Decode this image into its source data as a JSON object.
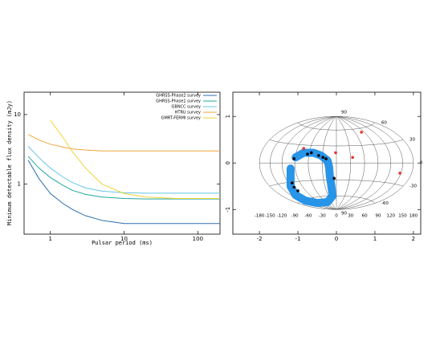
{
  "chart_data": [
    {
      "type": "line",
      "xlabel": "Pulsar period (ms)",
      "ylabel": "Minimum detectable flux density (mJy)",
      "xscale": "log",
      "yscale": "log",
      "xlim": [
        0.44,
        200
      ],
      "ylim": [
        0.19,
        21
      ],
      "xticks": [
        1,
        10,
        100
      ],
      "yticks": [
        1,
        10
      ],
      "legend": "upper right",
      "x": [
        0.5,
        0.7,
        1,
        1.5,
        2,
        3,
        5,
        10,
        20,
        50,
        100,
        200
      ],
      "series": [
        {
          "name": "GHRSS-Phase2 survey",
          "color": "#2b6cb0",
          "values": [
            2.2,
            1.2,
            0.73,
            0.52,
            0.43,
            0.35,
            0.3,
            0.27,
            0.27,
            0.27,
            0.27,
            0.27
          ]
        },
        {
          "name": "GHRSS-Phase1 survey",
          "color": "#22a79a",
          "values": [
            2.5,
            1.7,
            1.24,
            0.95,
            0.81,
            0.71,
            0.65,
            0.62,
            0.61,
            0.61,
            0.61,
            0.61
          ]
        },
        {
          "name": "GBNCC survey",
          "color": "#67c6e8",
          "values": [
            3.5,
            2.4,
            1.7,
            1.25,
            1.05,
            0.88,
            0.79,
            0.75,
            0.74,
            0.74,
            0.74,
            0.74
          ]
        },
        {
          "name": "HTRU survey",
          "color": "#f0a53c",
          "values": [
            5.2,
            4.3,
            3.75,
            3.4,
            3.2,
            3.1,
            3.0,
            3.0,
            3.0,
            3.0,
            3.0,
            3.0
          ]
        },
        {
          "name": "GMRT-FERMI survey",
          "color": "#f2d23a",
          "values": [
            null,
            null,
            8.3,
            4.6,
            2.9,
            1.7,
            1.0,
            0.73,
            0.65,
            0.62,
            0.62,
            0.62
          ]
        }
      ]
    },
    {
      "type": "scatter",
      "projection": "aitoff",
      "xlim": [
        -2.69,
        2.19
      ],
      "ylim": [
        -1.53,
        1.52
      ],
      "xticks": [
        -2,
        -1,
        0,
        1,
        2
      ],
      "yticks": [
        -1,
        0,
        1
      ],
      "latitude_labels": [
        90,
        60,
        30,
        0,
        -30,
        -60,
        {
          "value": -90,
          "label": "90"
        }
      ],
      "longitude_labels": [
        -180,
        -150,
        -120,
        -90,
        -60,
        -30,
        0,
        30,
        60,
        90,
        120,
        150,
        180
      ],
      "series": [
        {
          "mode": "band",
          "color": "#1e8fe8",
          "x": [
            -1.19,
            -1.19,
            -1.06,
            -0.81,
            -0.5,
            -0.23,
            -0.1,
            -0.13,
            -0.17,
            -0.19,
            -0.23,
            -0.4,
            -0.6,
            -0.85,
            -1.06
          ],
          "y": [
            -0.12,
            -0.5,
            -0.69,
            -0.81,
            -0.86,
            -0.84,
            -0.71,
            -0.5,
            -0.29,
            -0.09,
            0.05,
            0.16,
            0.22,
            0.22,
            0.12
          ]
        },
        {
          "mode": "marker",
          "color": "#000000",
          "x": [
            -1.1,
            -0.75,
            -0.65,
            -0.46,
            -0.35,
            -0.27,
            -0.06,
            -1.15,
            -1.1,
            -1.0
          ],
          "y": [
            0.09,
            0.19,
            0.22,
            0.16,
            0.12,
            0.09,
            -0.33,
            -0.43,
            -0.52,
            -0.6
          ]
        },
        {
          "mode": "marker",
          "color": "#e8302a",
          "x": [
            -0.85,
            -0.02,
            0.65,
            0.42,
            1.65
          ],
          "y": [
            0.31,
            0.22,
            0.66,
            0.12,
            -0.22
          ]
        }
      ]
    }
  ]
}
